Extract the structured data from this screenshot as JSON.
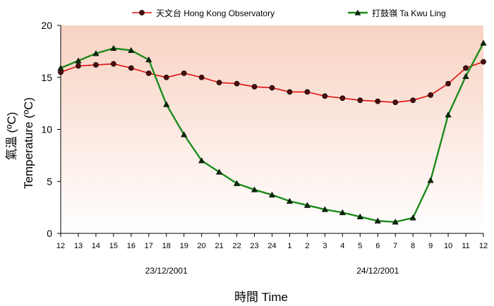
{
  "chart_data": {
    "type": "line",
    "title": "",
    "xlabel": "時間 Time",
    "ylabel": "Temperature (ºC)",
    "ylabel_secondary": "氣溫 (ºC)",
    "ylim": [
      0,
      20
    ],
    "yticks": [
      "0",
      "5",
      "10",
      "15",
      "20"
    ],
    "categories": [
      "12",
      "13",
      "14",
      "15",
      "16",
      "17",
      "18",
      "19",
      "20",
      "21",
      "22",
      "23",
      "24",
      "1",
      "2",
      "3",
      "4",
      "5",
      "6",
      "7",
      "8",
      "9",
      "10",
      "11",
      "12"
    ],
    "date_labels": [
      "23/12/2001",
      "24/12/2001"
    ],
    "grid": false,
    "legend_position": "top",
    "series": [
      {
        "name": "天文台 Hong Kong Observatory",
        "color": "#e01010",
        "marker": "circle",
        "values": [
          15.5,
          16.1,
          16.2,
          16.3,
          15.9,
          15.4,
          15.0,
          15.4,
          15.0,
          14.5,
          14.4,
          14.1,
          14.0,
          13.6,
          13.6,
          13.2,
          13.0,
          12.8,
          12.7,
          12.6,
          12.8,
          13.3,
          14.4,
          15.9,
          16.5
        ]
      },
      {
        "name": "打鼓嶺 Ta Kwu Ling",
        "color": "#1a8a1a",
        "marker": "triangle",
        "values": [
          15.9,
          16.6,
          17.3,
          17.8,
          17.6,
          16.7,
          12.4,
          9.5,
          7.0,
          5.9,
          4.8,
          4.2,
          3.7,
          3.1,
          2.7,
          2.3,
          2.0,
          1.6,
          1.2,
          1.1,
          1.5,
          5.1,
          11.4,
          15.1,
          18.3
        ]
      }
    ]
  }
}
